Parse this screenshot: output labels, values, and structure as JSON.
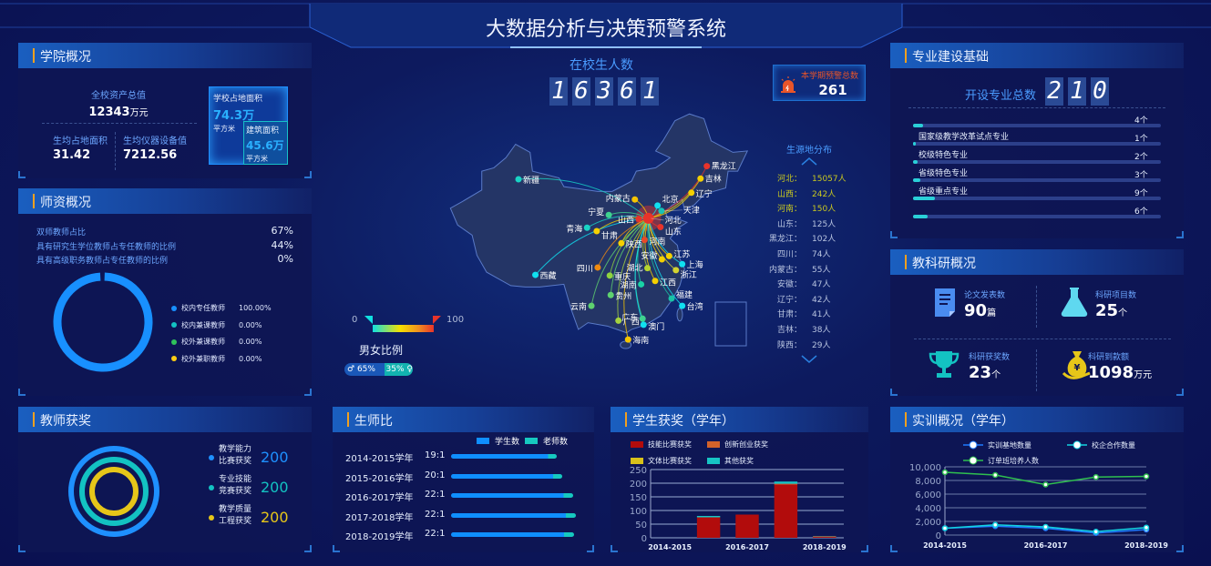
{
  "title": "大数据分析与决策预警系统",
  "college": {
    "title": "学院概况",
    "total_assets_label": "全校资产总值",
    "total_assets_value": "12343",
    "total_assets_unit": "万元",
    "land_per_student_label": "生均占地面积",
    "land_per_student_value": "31.42",
    "equipment_per_student_label": "生均仪器设备值",
    "equipment_per_student_value": "7212.56",
    "campus_area_label": "学校占地面积",
    "campus_area_value": "74.3万",
    "campus_area_unit": "平方米",
    "building_area_label": "建筑面积",
    "building_area_value": "45.6万",
    "building_area_unit": "平方米"
  },
  "faculty": {
    "title": "师资概况",
    "ratios": [
      {
        "label": "双师教师占比",
        "value": "67%"
      },
      {
        "label": "具有研究生学位教师占专任教师的比例",
        "value": "44%"
      },
      {
        "label": "具有高级职务教师占专任教师的比例",
        "value": "0%"
      }
    ],
    "donut": [
      {
        "label": "校内专任教师",
        "value": "100.00%",
        "percent": 100,
        "color": "#1890ff"
      },
      {
        "label": "校内兼课教师",
        "value": "0.00%",
        "percent": 0,
        "color": "#13c2c2"
      },
      {
        "label": "校外兼课教师",
        "value": "0.00%",
        "percent": 0,
        "color": "#2fc25b"
      },
      {
        "label": "校外兼职教师",
        "value": "0.00%",
        "percent": 0,
        "color": "#facc14"
      }
    ]
  },
  "teacher_awards": {
    "title": "教师获奖",
    "items": [
      {
        "line1": "教学能力",
        "line2": "比赛获奖",
        "value": "200",
        "color": "#1e90ff"
      },
      {
        "line1": "专业技能",
        "line2": "竞赛获奖",
        "value": "200",
        "color": "#13c2c2"
      },
      {
        "line1": "教学质量",
        "line2": "工程获奖",
        "value": "200",
        "color": "#e6c619"
      }
    ]
  },
  "students": {
    "label": "在校生人数",
    "digits": [
      "1",
      "6",
      "3",
      "6",
      "1"
    ]
  },
  "warning": {
    "label": "本学期预警总数",
    "value": "261",
    "icon": "alarm-light-icon",
    "color": "#e8552a"
  },
  "origin": {
    "title": "生源地分布",
    "list": [
      {
        "name": "河北：",
        "value": "15057人",
        "highlight": true
      },
      {
        "name": "山西：",
        "value": "242人",
        "highlight": true
      },
      {
        "name": "河南：",
        "value": "150人",
        "highlight": true
      },
      {
        "name": "山东：",
        "value": "125人"
      },
      {
        "name": "黑龙江：",
        "value": "102人"
      },
      {
        "name": "四川：",
        "value": "74人"
      },
      {
        "name": "内蒙古：",
        "value": "55人"
      },
      {
        "name": "安徽：",
        "value": "47人"
      },
      {
        "name": "辽宁：",
        "value": "42人"
      },
      {
        "name": "甘肃：",
        "value": "41人"
      },
      {
        "name": "吉林：",
        "value": "38人"
      },
      {
        "name": "陕西：",
        "value": "29人"
      }
    ]
  },
  "map": {
    "origin_province": "河北",
    "visual_min": "0",
    "visual_max": "100",
    "points": [
      {
        "name": "新疆",
        "lon": 87.6,
        "lat": 43.8,
        "color": "#19d3c5"
      },
      {
        "name": "西藏",
        "lon": 91.1,
        "lat": 29.6,
        "color": "#10e0f0"
      },
      {
        "name": "青海",
        "lon": 101.8,
        "lat": 36.6,
        "color": "#19d3c5"
      },
      {
        "name": "甘肃",
        "lon": 103.8,
        "lat": 36.1,
        "color": "#f5d000"
      },
      {
        "name": "宁夏",
        "lon": 106.3,
        "lat": 38.5,
        "color": "#3fd38f"
      },
      {
        "name": "内蒙古",
        "lon": 111.7,
        "lat": 40.8,
        "color": "#f5c400"
      },
      {
        "name": "北京",
        "lon": 116.4,
        "lat": 39.9,
        "color": "#10e0f0"
      },
      {
        "name": "天津",
        "lon": 117.2,
        "lat": 39.1,
        "color": "#19c3b5"
      },
      {
        "name": "山西",
        "lon": 112.5,
        "lat": 37.9,
        "color": "#e8332a"
      },
      {
        "name": "河北",
        "lon": 114.5,
        "lat": 38.0,
        "color": "#e8332a"
      },
      {
        "name": "山东",
        "lon": 117.0,
        "lat": 36.7,
        "color": "#e8332a"
      },
      {
        "name": "河南",
        "lon": 113.7,
        "lat": 34.8,
        "color": "#e84a2a"
      },
      {
        "name": "陕西",
        "lon": 108.9,
        "lat": 34.3,
        "color": "#f5d000"
      },
      {
        "name": "四川",
        "lon": 104.0,
        "lat": 30.7,
        "color": "#f08a10"
      },
      {
        "name": "重庆",
        "lon": 106.5,
        "lat": 29.5,
        "color": "#8fd33f"
      },
      {
        "name": "湖北",
        "lon": 114.3,
        "lat": 30.6,
        "color": "#b5d330"
      },
      {
        "name": "安徽",
        "lon": 117.3,
        "lat": 31.9,
        "color": "#f5d000"
      },
      {
        "name": "江苏",
        "lon": 118.8,
        "lat": 32.4,
        "color": "#f5d000"
      },
      {
        "name": "上海",
        "lon": 121.5,
        "lat": 31.2,
        "color": "#10e0f0"
      },
      {
        "name": "浙江",
        "lon": 120.2,
        "lat": 30.3,
        "color": "#d3d330"
      },
      {
        "name": "江西",
        "lon": 115.9,
        "lat": 28.7,
        "color": "#f5d000"
      },
      {
        "name": "湖南",
        "lon": 113.0,
        "lat": 28.2,
        "color": "#19d3a5"
      },
      {
        "name": "贵州",
        "lon": 106.7,
        "lat": 26.6,
        "color": "#5fd36f"
      },
      {
        "name": "云南",
        "lon": 102.7,
        "lat": 25.0,
        "color": "#5fd36f"
      },
      {
        "name": "广西",
        "lon": 108.3,
        "lat": 22.8,
        "color": "#a5d33f"
      },
      {
        "name": "广东",
        "lon": 113.3,
        "lat": 23.1,
        "color": "#3fd38f"
      },
      {
        "name": "澳门",
        "lon": 113.5,
        "lat": 22.2,
        "color": "#10e0f0"
      },
      {
        "name": "福建",
        "lon": 119.3,
        "lat": 26.1,
        "color": "#19c3a5"
      },
      {
        "name": "台湾",
        "lon": 121.5,
        "lat": 25.0,
        "color": "#10e0f0"
      },
      {
        "name": "海南",
        "lon": 110.3,
        "lat": 20.0,
        "color": "#f5c400"
      },
      {
        "name": "辽宁",
        "lon": 123.4,
        "lat": 41.8,
        "color": "#f5d000"
      },
      {
        "name": "吉林",
        "lon": 125.3,
        "lat": 43.9,
        "color": "#f5d000"
      },
      {
        "name": "黑龙江",
        "lon": 126.6,
        "lat": 45.75,
        "color": "#e8332a"
      }
    ]
  },
  "gender": {
    "label": "男女比例",
    "male": "65%",
    "female": "35%",
    "male_percent": 65
  },
  "major": {
    "title": "专业建设基础",
    "total_label": "开设专业总数",
    "digits": [
      "2",
      "1",
      "0"
    ],
    "scale_max": 100,
    "bars": [
      {
        "label": "",
        "value": 4,
        "text": "4个"
      },
      {
        "label": "国家级教学改革试点专业",
        "value": 1,
        "text": "1个"
      },
      {
        "label": "校级特色专业",
        "value": 2,
        "text": "2个"
      },
      {
        "label": "省级特色专业",
        "value": 3,
        "text": "3个"
      },
      {
        "label": "省级重点专业",
        "value": 9,
        "text": "9个"
      },
      {
        "label": "",
        "value": 6,
        "text": "6个"
      }
    ]
  },
  "research": {
    "title": "教科研概况",
    "items": [
      {
        "label": "论文发表数",
        "value": "90",
        "unit": "篇",
        "icon": "document-icon"
      },
      {
        "label": "科研项目数",
        "value": "25",
        "unit": "个",
        "icon": "flask-icon"
      },
      {
        "label": "科研获奖数",
        "value": "23",
        "unit": "个",
        "icon": "trophy-icon"
      },
      {
        "label": "科研到款额",
        "value": "1098",
        "unit": "万元",
        "icon": "money-bag-icon"
      }
    ]
  },
  "chart_data": [
    {
      "type": "bar",
      "title": "生师比",
      "orientation": "horizontal",
      "legend": [
        "学生数",
        "老师数"
      ],
      "colors": [
        "#0f8fff",
        "#16c9c0"
      ],
      "categories": [
        "2014-2015学年",
        "2015-2016学年",
        "2016-2017学年",
        "2017-2018学年",
        "2018-2019学年"
      ],
      "ratio_labels": [
        "19:1",
        "20:1",
        "22:1",
        "22:1",
        "22:1"
      ],
      "values": [
        19,
        20,
        22,
        22.4,
        22.1
      ]
    },
    {
      "type": "bar",
      "stacked": true,
      "title": "学生获奖（学年）",
      "categories": [
        "2014-2015",
        "2015-2016",
        "2016-2017",
        "2017-2018",
        "2018-2019"
      ],
      "x_tick_labels": [
        "2014-2015",
        "2016-2017",
        "2018-2019"
      ],
      "ylim": [
        0,
        250
      ],
      "yticks": [
        0,
        50,
        100,
        150,
        200,
        250
      ],
      "grid": true,
      "legend_placement": "top",
      "series": [
        {
          "name": "技能比赛获奖",
          "color": "#b20c0c",
          "values": [
            0,
            75,
            85,
            195,
            3
          ]
        },
        {
          "name": "创新创业获奖",
          "color": "#d2622a",
          "values": [
            0,
            0,
            0,
            3,
            2
          ]
        },
        {
          "name": "文体比赛获奖",
          "color": "#d8c21a",
          "values": [
            0,
            0,
            0,
            0,
            0
          ]
        },
        {
          "name": "其他获奖",
          "color": "#16c4c4",
          "values": [
            0,
            5,
            0,
            8,
            1
          ]
        }
      ]
    },
    {
      "type": "line",
      "title": "实训概况（学年）",
      "categories": [
        "2014-2015",
        "2015-2016",
        "2016-2017",
        "2017-2018",
        "2018-2019"
      ],
      "x_tick_labels": [
        "2014-2015",
        "2016-2017",
        "2018-2019"
      ],
      "ylim": [
        0,
        10000
      ],
      "yticks": [
        "0",
        "2,000",
        "4,000",
        "6,000",
        "8,000",
        "10,000"
      ],
      "grid": true,
      "legend_placement": "top",
      "series": [
        {
          "name": "实训基地数量",
          "color": "#1e7bff",
          "values": [
            1000,
            1300,
            1000,
            300,
            800
          ]
        },
        {
          "name": "校企合作数量",
          "color": "#13d3e0",
          "values": [
            1000,
            1500,
            1200,
            500,
            1100
          ]
        },
        {
          "name": "订单班培养人数",
          "color": "#2fbf4f",
          "values": [
            9200,
            8800,
            7400,
            8500,
            8600
          ]
        }
      ]
    }
  ]
}
